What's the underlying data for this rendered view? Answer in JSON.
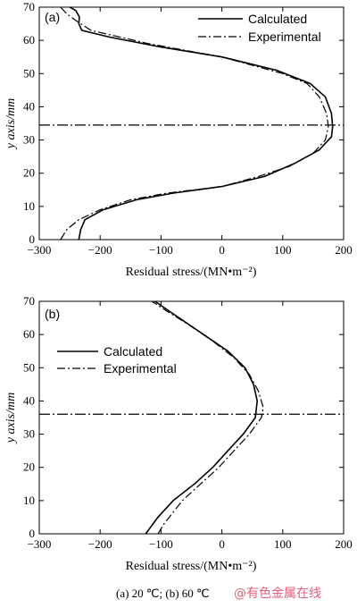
{
  "chart_data": [
    {
      "type": "line",
      "panel_label": "(a)",
      "xlabel": "Residual stress/(MN•m⁻²)",
      "ylabel": "y axis/mm",
      "xlim": [
        -300,
        200
      ],
      "ylim": [
        0,
        70
      ],
      "xticks": [
        -300,
        -200,
        -100,
        0,
        100,
        200
      ],
      "yticks": [
        0,
        10,
        20,
        30,
        40,
        50,
        60,
        70
      ],
      "neutral_axis_y": 34.5,
      "legend_position": "top-right",
      "series": [
        {
          "name": "Calculated",
          "style": "solid",
          "points": [
            [
              -235,
              0
            ],
            [
              -232,
              3
            ],
            [
              -225,
              6
            ],
            [
              -195,
              9
            ],
            [
              -140,
              12
            ],
            [
              -80,
              14
            ],
            [
              0,
              16
            ],
            [
              70,
              19
            ],
            [
              120,
              23
            ],
            [
              160,
              27
            ],
            [
              180,
              31
            ],
            [
              182,
              34
            ],
            [
              180,
              38
            ],
            [
              170,
              43
            ],
            [
              145,
              47
            ],
            [
              90,
              51
            ],
            [
              0,
              55
            ],
            [
              -100,
              58
            ],
            [
              -185,
              61
            ],
            [
              -230,
              63
            ],
            [
              -235,
              65
            ],
            [
              -234,
              67
            ],
            [
              -240,
              69
            ],
            [
              -250,
              70
            ]
          ]
        },
        {
          "name": "Experimental",
          "style": "dashdot",
          "points": [
            [
              -265,
              0
            ],
            [
              -255,
              3
            ],
            [
              -235,
              6
            ],
            [
              -200,
              9
            ],
            [
              -150,
              12
            ],
            [
              -90,
              14
            ],
            [
              0,
              16
            ],
            [
              60,
              19
            ],
            [
              110,
              22
            ],
            [
              150,
              26
            ],
            [
              170,
              30
            ],
            [
              175,
              34
            ],
            [
              172,
              38
            ],
            [
              160,
              43
            ],
            [
              140,
              47
            ],
            [
              100,
              50
            ],
            [
              0,
              55
            ],
            [
              -120,
              59
            ],
            [
              -215,
              63
            ],
            [
              -240,
              66
            ],
            [
              -255,
              68
            ],
            [
              -265,
              70
            ]
          ]
        }
      ]
    },
    {
      "type": "line",
      "panel_label": "(b)",
      "xlabel": "Residual stress/(MN•m⁻²)",
      "ylabel": "y axis/mm",
      "xlim": [
        -300,
        200
      ],
      "ylim": [
        0,
        70
      ],
      "xticks": [
        -300,
        -200,
        -100,
        0,
        100,
        200
      ],
      "yticks": [
        0,
        10,
        20,
        30,
        40,
        50,
        60,
        70
      ],
      "neutral_axis_y": 36,
      "legend_position": "upper-left",
      "series": [
        {
          "name": "Calculated",
          "style": "solid",
          "points": [
            [
              -125,
              0
            ],
            [
              -105,
              5
            ],
            [
              -80,
              10
            ],
            [
              -45,
              15
            ],
            [
              -15,
              20
            ],
            [
              10,
              25
            ],
            [
              35,
              30
            ],
            [
              55,
              35
            ],
            [
              58,
              40
            ],
            [
              52,
              45
            ],
            [
              38,
              50
            ],
            [
              10,
              55
            ],
            [
              -30,
              60
            ],
            [
              -70,
              65
            ],
            [
              -110,
              70
            ]
          ]
        },
        {
          "name": "Experimental",
          "style": "dashdot",
          "points": [
            [
              -105,
              0
            ],
            [
              -95,
              3
            ],
            [
              -65,
              10
            ],
            [
              -35,
              15
            ],
            [
              -5,
              20
            ],
            [
              20,
              25
            ],
            [
              45,
              30
            ],
            [
              65,
              35
            ],
            [
              68,
              38
            ],
            [
              60,
              43
            ],
            [
              45,
              48
            ],
            [
              20,
              53
            ],
            [
              -15,
              58
            ],
            [
              -55,
              63
            ],
            [
              -90,
              67
            ],
            [
              -115,
              70
            ]
          ]
        }
      ]
    }
  ],
  "caption": "(a) 20 ℃; (b) 60 ℃",
  "watermark": "@有色金属在线"
}
